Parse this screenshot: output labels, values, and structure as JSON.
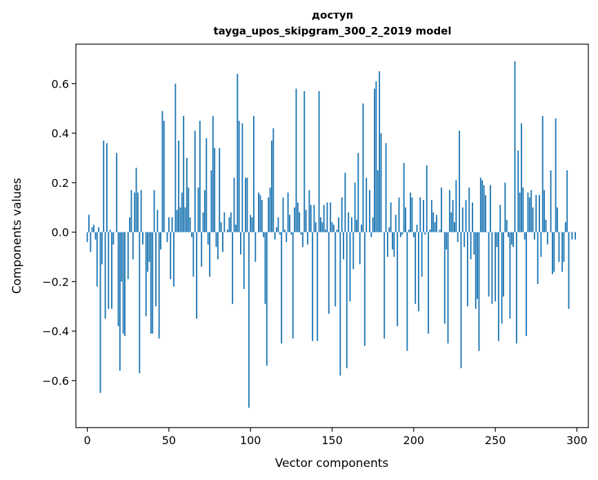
{
  "chart_data": {
    "type": "bar",
    "title_line1": "доступ",
    "title_line2": "tayga_upos_skipgram_300_2_2019 model",
    "xlabel": "Vector components",
    "ylabel": "Components values",
    "xlim": [
      -7,
      307
    ],
    "ylim": [
      -0.79,
      0.76
    ],
    "xticks": [
      0,
      50,
      100,
      150,
      200,
      250,
      300
    ],
    "yticks": [
      -0.6,
      -0.4,
      -0.2,
      0.0,
      0.2,
      0.4,
      0.6
    ],
    "ytick_labels": [
      "−0.6",
      "−0.4",
      "−0.2",
      "0.0",
      "0.2",
      "0.4",
      "0.6"
    ],
    "bar_color": "#1f77b4",
    "values": [
      -0.04,
      0.07,
      -0.08,
      0.02,
      0.03,
      -0.03,
      -0.22,
      0.02,
      -0.65,
      -0.13,
      0.37,
      -0.35,
      0.36,
      -0.31,
      0.01,
      -0.31,
      -0.05,
      0.0,
      0.32,
      -0.38,
      -0.56,
      -0.2,
      -0.41,
      -0.42,
      0.0,
      -0.19,
      0.06,
      0.17,
      -0.11,
      0.16,
      0.26,
      0.16,
      -0.57,
      0.17,
      -0.05,
      0.0,
      -0.34,
      -0.16,
      -0.12,
      -0.41,
      -0.41,
      0.17,
      -0.3,
      0.09,
      -0.43,
      -0.07,
      0.49,
      0.45,
      0.0,
      -0.04,
      0.06,
      -0.19,
      0.06,
      -0.22,
      0.6,
      0.09,
      0.37,
      0.1,
      0.16,
      0.47,
      0.1,
      0.3,
      0.18,
      0.06,
      -0.02,
      -0.18,
      0.41,
      -0.35,
      0.18,
      0.45,
      -0.14,
      0.08,
      0.17,
      0.38,
      -0.05,
      -0.18,
      0.25,
      0.47,
      0.34,
      -0.06,
      -0.11,
      0.34,
      0.04,
      -0.08,
      0.08,
      0.0,
      0.01,
      0.06,
      0.08,
      -0.29,
      0.22,
      0.03,
      0.64,
      0.45,
      -0.09,
      0.44,
      -0.23,
      0.22,
      0.22,
      -0.71,
      0.07,
      0.06,
      0.47,
      -0.12,
      0.0,
      0.16,
      0.15,
      0.13,
      -0.02,
      -0.29,
      -0.54,
      0.14,
      0.18,
      0.37,
      0.42,
      -0.03,
      0.02,
      0.06,
      -0.01,
      -0.45,
      0.14,
      0.01,
      -0.04,
      0.16,
      0.07,
      -0.01,
      -0.43,
      0.1,
      0.58,
      0.12,
      0.08,
      -0.01,
      -0.06,
      0.57,
      0.09,
      -0.05,
      0.17,
      0.11,
      -0.44,
      0.11,
      0.04,
      -0.44,
      0.57,
      0.06,
      0.04,
      0.11,
      0.01,
      0.12,
      -0.33,
      0.12,
      0.04,
      0.03,
      -0.3,
      0.01,
      0.06,
      -0.58,
      0.14,
      -0.11,
      0.24,
      -0.55,
      0.08,
      -0.28,
      0.06,
      -0.15,
      0.2,
      0.05,
      0.32,
      -0.13,
      0.03,
      0.52,
      -0.46,
      0.22,
      0.0,
      0.17,
      -0.02,
      0.06,
      0.58,
      0.61,
      0.25,
      0.65,
      0.4,
      0.0,
      -0.43,
      0.36,
      -0.1,
      0.02,
      0.12,
      -0.07,
      -0.1,
      0.07,
      -0.38,
      0.14,
      -0.02,
      -0.01,
      0.28,
      0.1,
      -0.48,
      0.01,
      0.16,
      0.14,
      -0.02,
      -0.29,
      0.03,
      -0.32,
      0.14,
      -0.18,
      0.13,
      -0.01,
      0.27,
      -0.41,
      0.01,
      0.13,
      0.08,
      0.04,
      0.07,
      0.0,
      0.01,
      0.18,
      0.0,
      -0.37,
      -0.07,
      -0.45,
      0.17,
      0.08,
      0.13,
      0.04,
      0.21,
      -0.04,
      0.41,
      -0.55,
      0.1,
      -0.06,
      0.13,
      -0.3,
      0.18,
      -0.11,
      0.12,
      -0.09,
      -0.31,
      -0.27,
      -0.48,
      0.22,
      0.21,
      0.19,
      0.15,
      0.0,
      -0.26,
      0.19,
      -0.29,
      0.0,
      -0.28,
      -0.06,
      -0.44,
      0.11,
      -0.37,
      -0.26,
      0.2,
      0.05,
      -0.02,
      -0.35,
      -0.05,
      -0.06,
      0.69,
      -0.45,
      0.33,
      0.16,
      0.44,
      0.18,
      -0.03,
      -0.42,
      0.16,
      0.14,
      0.17,
      0.1,
      -0.03,
      0.15,
      -0.21,
      0.15,
      -0.1,
      0.47,
      0.17,
      0.05,
      -0.05,
      0.0,
      0.25,
      -0.17,
      -0.16,
      0.46,
      0.1,
      -0.12,
      0.0,
      -0.16,
      -0.12,
      0.04,
      0.25,
      -0.31,
      0.0,
      -0.03,
      0.0,
      -0.03
    ]
  }
}
